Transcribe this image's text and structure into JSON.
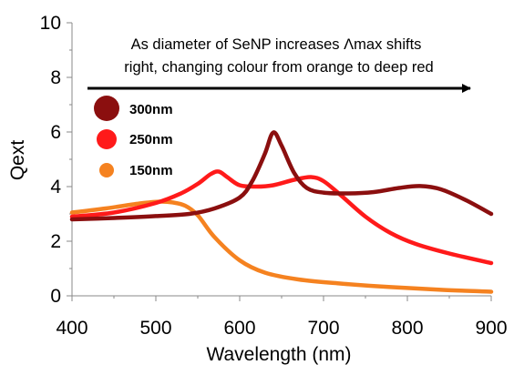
{
  "chart_data": {
    "type": "line",
    "title": "",
    "xlabel": "Wavelength (nm)",
    "ylabel": "Qext",
    "xlim": [
      400,
      900
    ],
    "ylim": [
      0,
      10
    ],
    "x_ticks": [
      "400",
      "500",
      "600",
      "700",
      "800",
      "900"
    ],
    "y_ticks": [
      "0",
      "2",
      "4",
      "6",
      "8",
      "10"
    ],
    "grid": false,
    "legend_position": "top-left",
    "annotation": {
      "lines": [
        "As diameter of SeNP increases Λmax shifts",
        "right, changing colour from orange to deep red"
      ],
      "arrow_direction": "right"
    },
    "series": [
      {
        "name": "300nm",
        "color": "#8b0f0f",
        "x": [
          400,
          450,
          500,
          540,
          570,
          600,
          615,
          630,
          640,
          650,
          665,
          680,
          700,
          730,
          760,
          790,
          815,
          840,
          870,
          900
        ],
        "y": [
          2.8,
          2.85,
          2.92,
          3.0,
          3.2,
          3.6,
          4.2,
          5.2,
          5.98,
          5.5,
          4.5,
          3.95,
          3.78,
          3.75,
          3.8,
          3.95,
          4.02,
          3.9,
          3.5,
          3.0
        ]
      },
      {
        "name": "250nm",
        "color": "#ff1a1a",
        "x": [
          400,
          450,
          500,
          530,
          550,
          565,
          575,
          585,
          600,
          620,
          640,
          665,
          685,
          700,
          720,
          750,
          780,
          810,
          850,
          900
        ],
        "y": [
          2.9,
          3.05,
          3.4,
          3.75,
          4.1,
          4.45,
          4.55,
          4.35,
          4.05,
          4.0,
          4.05,
          4.25,
          4.35,
          4.2,
          3.7,
          2.9,
          2.3,
          1.9,
          1.55,
          1.2
        ]
      },
      {
        "name": "150nm",
        "color": "#f58220",
        "x": [
          400,
          440,
          480,
          505,
          520,
          535,
          550,
          570,
          600,
          630,
          670,
          720,
          780,
          840,
          900
        ],
        "y": [
          3.05,
          3.2,
          3.38,
          3.45,
          3.42,
          3.3,
          2.95,
          2.15,
          1.3,
          0.85,
          0.6,
          0.45,
          0.32,
          0.22,
          0.15
        ]
      }
    ]
  }
}
